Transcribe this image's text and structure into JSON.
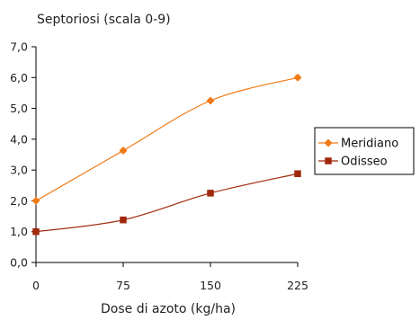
{
  "chart_data": {
    "type": "line",
    "ylabel": "Septoriosi (scala 0-9)",
    "xlabel": "Dose di azoto (kg/ha)",
    "x": [
      0,
      75,
      150,
      225
    ],
    "x_tick_labels": [
      "0",
      "75",
      "150",
      "225"
    ],
    "ylim": [
      0,
      7
    ],
    "y_ticks": [
      0,
      1,
      2,
      3,
      4,
      5,
      6,
      7
    ],
    "y_tick_labels": [
      "0,0",
      "1,0",
      "2,0",
      "3,0",
      "4,0",
      "5,0",
      "6,0",
      "7,0"
    ],
    "grid": false,
    "legend_position": "right",
    "series": [
      {
        "name": "Meridiano",
        "values": [
          2.0,
          3.63,
          5.25,
          6.0
        ],
        "color": "#f07a16",
        "marker": "diamond"
      },
      {
        "name": "Odisseo",
        "values": [
          1.0,
          1.38,
          2.25,
          2.88
        ],
        "color": "#a0290c",
        "marker": "square"
      }
    ]
  }
}
